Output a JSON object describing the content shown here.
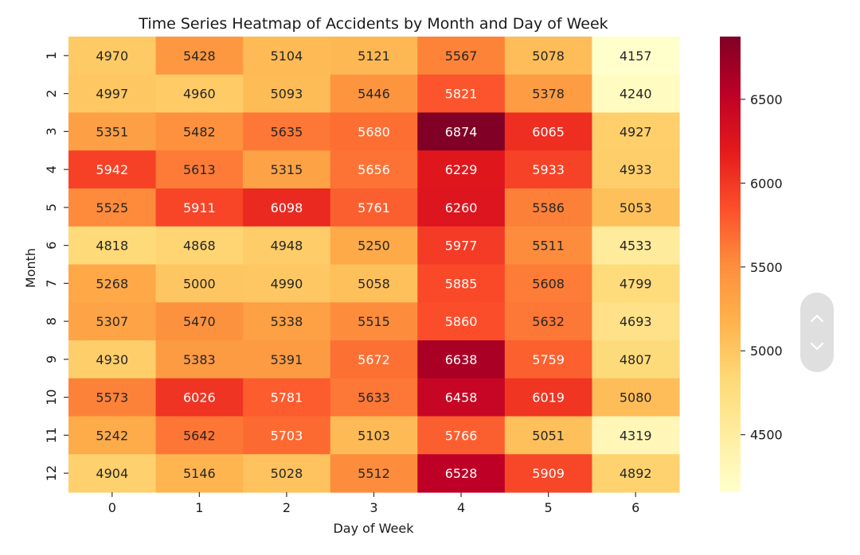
{
  "chart_data": {
    "type": "heatmap",
    "title": "Time Series Heatmap of Accidents by Month and Day of Week",
    "xlabel": "Day of Week",
    "ylabel": "Month",
    "x_categories": [
      "0",
      "1",
      "2",
      "3",
      "4",
      "5",
      "6"
    ],
    "y_categories": [
      "1",
      "2",
      "3",
      "4",
      "5",
      "6",
      "7",
      "8",
      "9",
      "10",
      "11",
      "12"
    ],
    "values": [
      [
        4970,
        5428,
        5104,
        5121,
        5567,
        5078,
        4157
      ],
      [
        4997,
        4960,
        5093,
        5446,
        5821,
        5378,
        4240
      ],
      [
        5351,
        5482,
        5635,
        5680,
        6874,
        6065,
        4927
      ],
      [
        5942,
        5613,
        5315,
        5656,
        6229,
        5933,
        4933
      ],
      [
        5525,
        5911,
        6098,
        5761,
        6260,
        5586,
        5053
      ],
      [
        4818,
        4868,
        4948,
        5250,
        5977,
        5511,
        4533
      ],
      [
        5268,
        5000,
        4990,
        5058,
        5885,
        5608,
        4799
      ],
      [
        5307,
        5470,
        5338,
        5515,
        5860,
        5632,
        4693
      ],
      [
        4930,
        5383,
        5391,
        5672,
        6638,
        5759,
        4807
      ],
      [
        5573,
        6026,
        5781,
        5633,
        6458,
        6019,
        5080
      ],
      [
        5242,
        5642,
        5703,
        5103,
        5766,
        5051,
        4319
      ],
      [
        4904,
        5146,
        5028,
        5512,
        6528,
        5909,
        4892
      ]
    ],
    "colormap": "YlOrRd",
    "color_range": [
      4157,
      6874
    ],
    "colorbar_ticks": [
      "4500",
      "5000",
      "5500",
      "6000",
      "6500"
    ],
    "annotations": true,
    "grid": false
  },
  "scroll_controls": {
    "up_icon": "chevron-up-icon",
    "down_icon": "chevron-down-icon"
  }
}
